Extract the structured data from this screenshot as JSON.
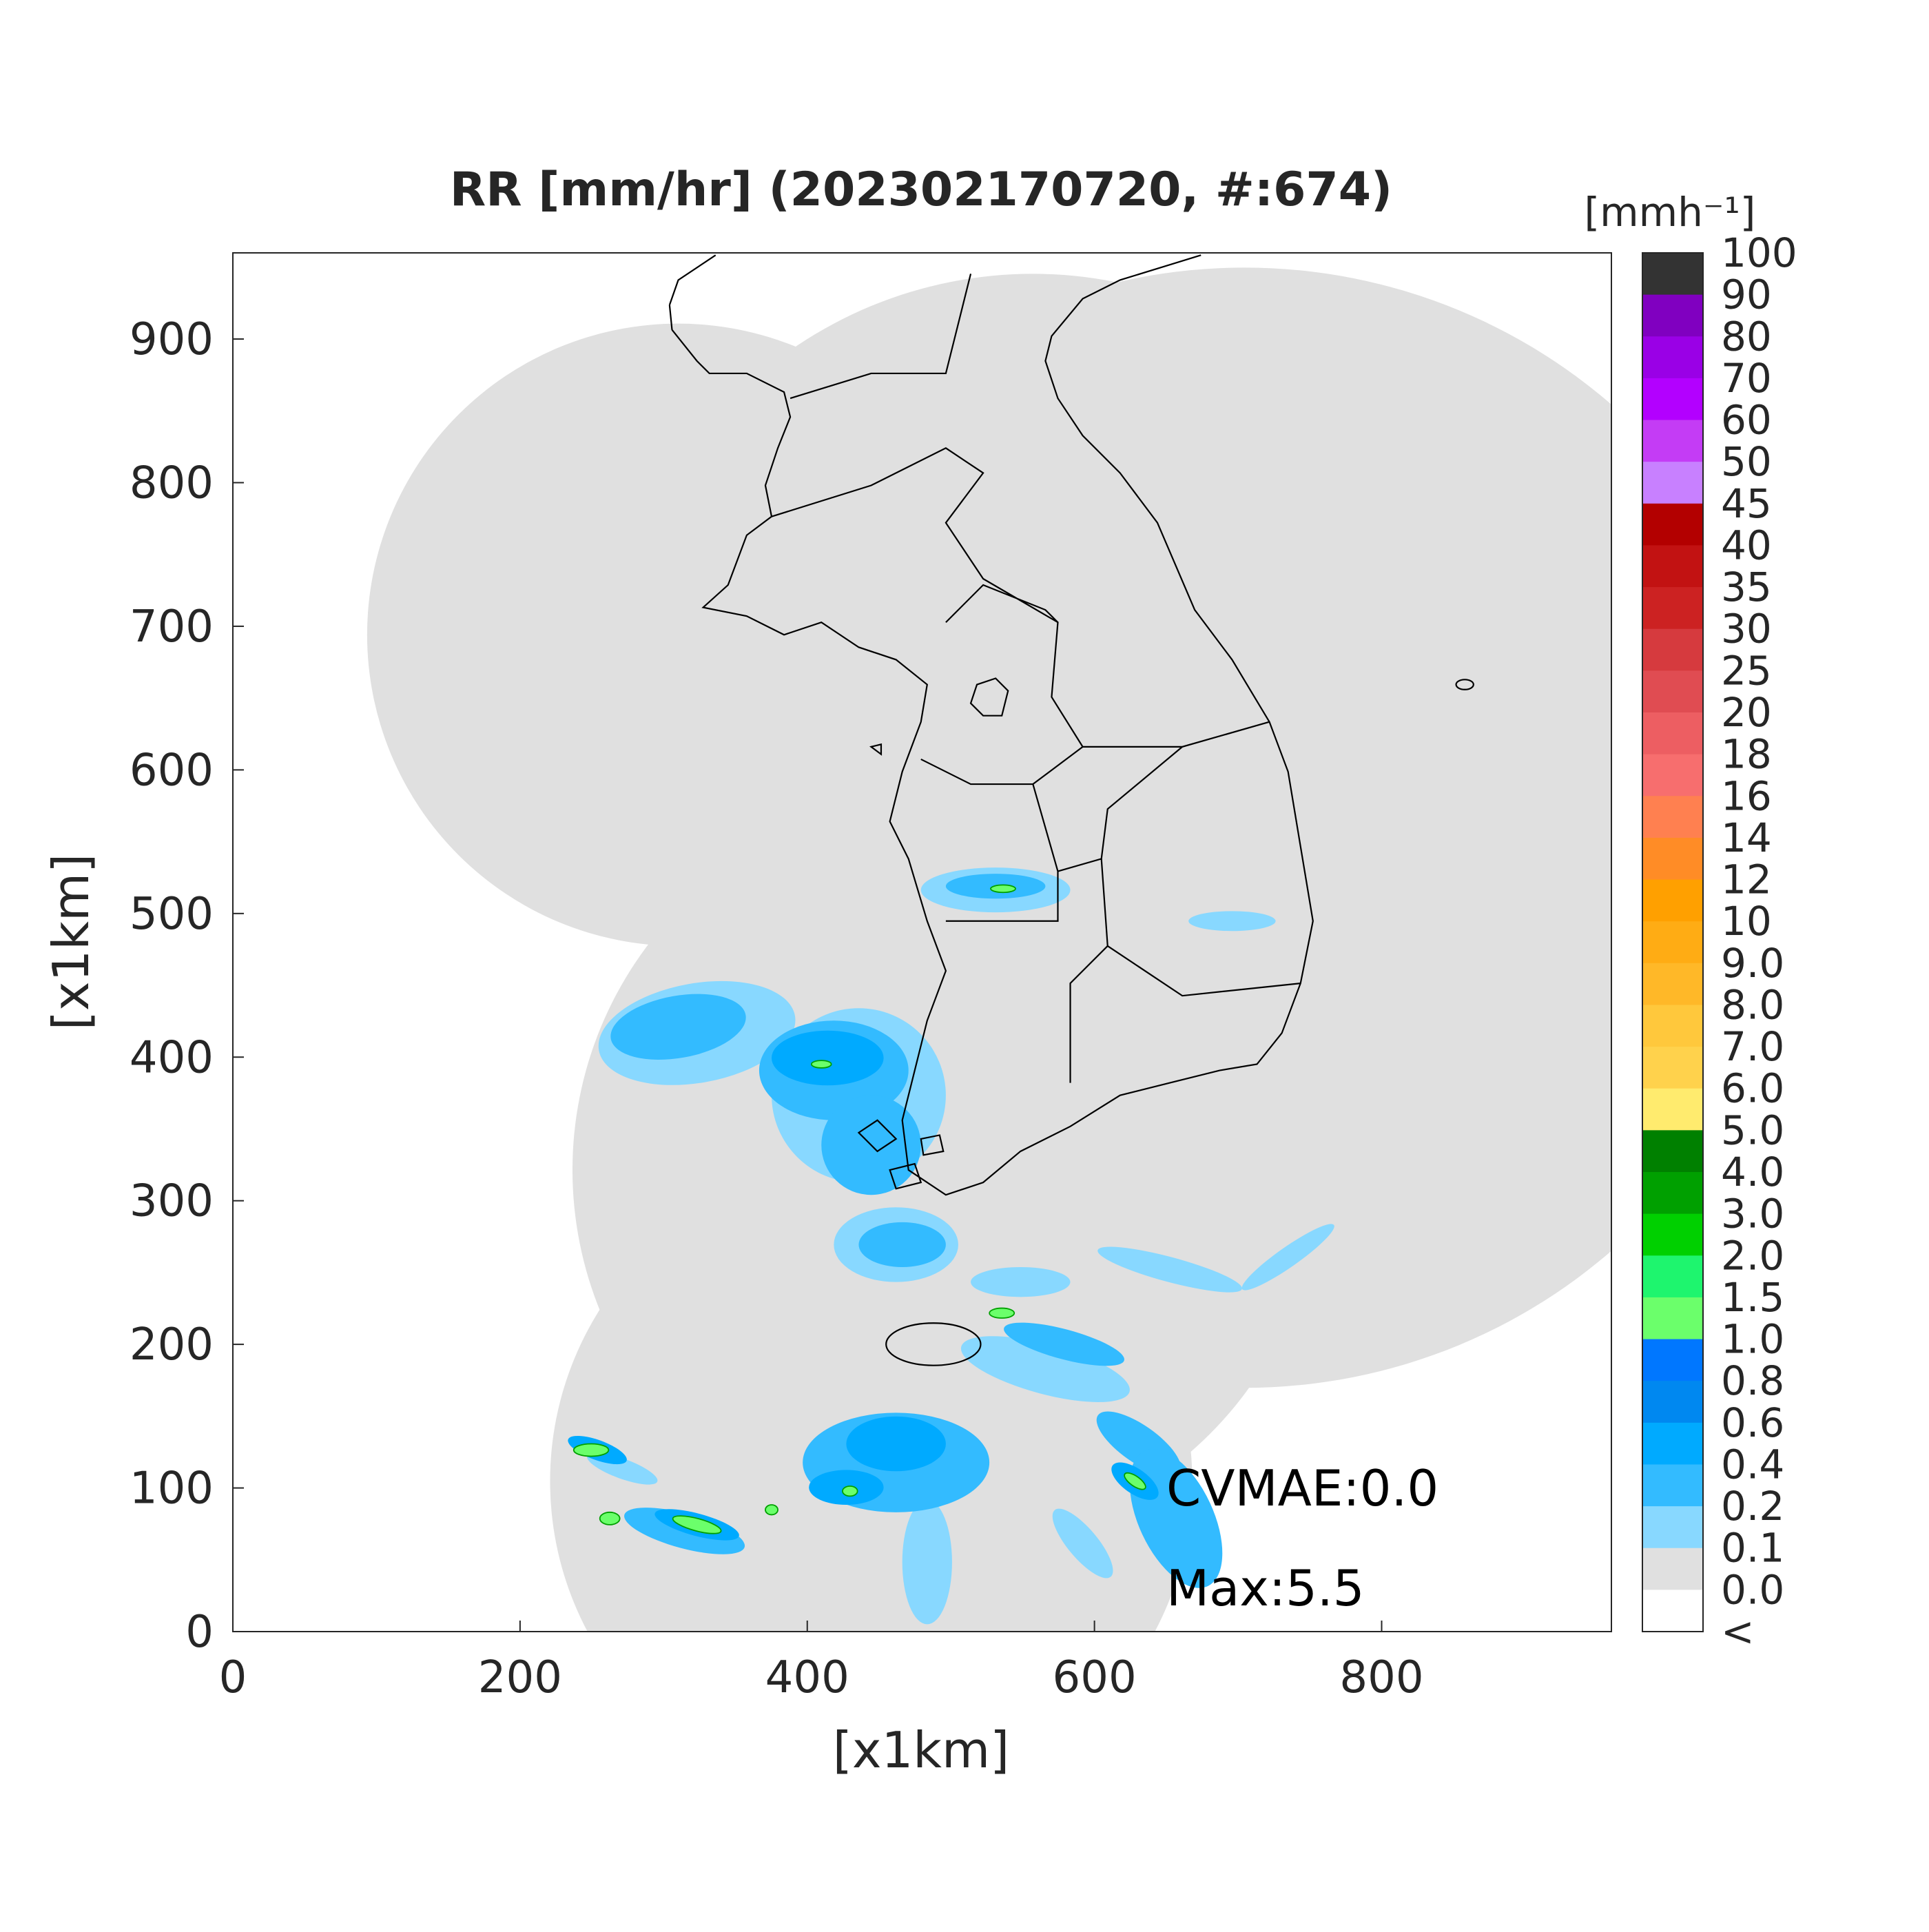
{
  "chart_data": {
    "type": "map",
    "title": "RR [mm/hr] (202302170720, #:674)",
    "xlabel": "[x1km]",
    "ylabel": "[x1km]",
    "xlim": [
      0,
      960
    ],
    "ylim": [
      0,
      960
    ],
    "xticks": [
      0,
      200,
      400,
      600,
      800
    ],
    "yticks": [
      0,
      100,
      200,
      300,
      400,
      500,
      600,
      700,
      800,
      900
    ],
    "grid": false,
    "annotations": [
      "CVMAE:0.0",
      "Max:5.5"
    ],
    "colorbar": {
      "unit": "[mmh⁻¹]",
      "ticks": [
        100,
        90,
        80,
        70,
        60,
        50,
        45,
        40,
        35,
        30,
        25,
        20,
        18,
        16,
        14,
        12,
        10,
        {
          "value": 9,
          "label": "9.0"
        },
        {
          "value": 8,
          "label": "8.0"
        },
        {
          "value": 7,
          "label": "7.0"
        },
        {
          "value": 6,
          "label": "6.0"
        },
        {
          "value": 5,
          "label": "5.0"
        },
        {
          "value": 4,
          "label": "4.0"
        },
        {
          "value": 3,
          "label": "3.0"
        },
        {
          "value": 2,
          "label": "2.0"
        },
        1.5,
        {
          "value": 1,
          "label": "1.0"
        },
        0.8,
        0.6,
        0.4,
        0.2,
        0.1,
        {
          "value": 0,
          "label": "0.0"
        }
      ],
      "below_label": "<",
      "colors": [
        "#333333",
        "#8000c0",
        "#9a00e6",
        "#b300ff",
        "#c43cf5",
        "#c880ff",
        "#b30000",
        "#c21212",
        "#cc2222",
        "#d63a3e",
        "#e04c52",
        "#ed5e62",
        "#f76e6e",
        "#ff8050",
        "#ff8c26",
        "#ffa000",
        "#ffac14",
        "#ffb828",
        "#ffc83c",
        "#ffd24c",
        "#ffeb6e",
        "#008000",
        "#00a000",
        "#00d000",
        "#1ef56e",
        "#6bff6b",
        "#0077ff",
        "#0088f0",
        "#00aaff",
        "#33bbff",
        "#88d8ff",
        "#e0e0e0",
        "#ffffff"
      ]
    }
  }
}
